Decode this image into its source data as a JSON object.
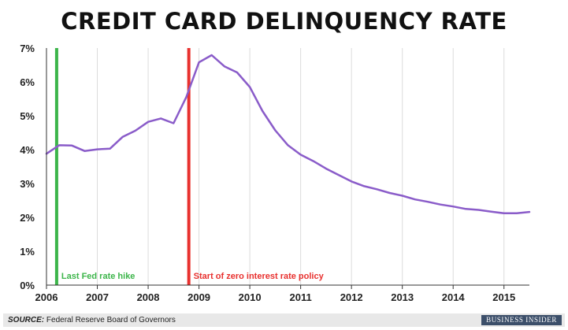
{
  "chart_data": {
    "type": "line",
    "title": "CREDIT CARD DELINQUENCY RATE",
    "xlabel": "",
    "ylabel": "",
    "x_ticks": [
      "2006",
      "2007",
      "2008",
      "2009",
      "2010",
      "2011",
      "2012",
      "2013",
      "2014",
      "2015"
    ],
    "y_ticks": [
      "0%",
      "1%",
      "2%",
      "3%",
      "4%",
      "5%",
      "6%",
      "7%"
    ],
    "xlim": [
      2006.0,
      2015.5
    ],
    "ylim": [
      0,
      7
    ],
    "grid": "vertical",
    "series": [
      {
        "color": "#8a5cc9",
        "points": [
          [
            2006.0,
            3.88
          ],
          [
            2006.25,
            4.13
          ],
          [
            2006.5,
            4.12
          ],
          [
            2006.75,
            3.96
          ],
          [
            2007.0,
            4.01
          ],
          [
            2007.25,
            4.03
          ],
          [
            2007.5,
            4.38
          ],
          [
            2007.75,
            4.56
          ],
          [
            2008.0,
            4.82
          ],
          [
            2008.25,
            4.92
          ],
          [
            2008.5,
            4.78
          ],
          [
            2008.75,
            5.55
          ],
          [
            2009.0,
            6.58
          ],
          [
            2009.25,
            6.79
          ],
          [
            2009.5,
            6.46
          ],
          [
            2009.75,
            6.28
          ],
          [
            2010.0,
            5.85
          ],
          [
            2010.25,
            5.14
          ],
          [
            2010.5,
            4.57
          ],
          [
            2010.75,
            4.13
          ],
          [
            2011.0,
            3.85
          ],
          [
            2011.25,
            3.66
          ],
          [
            2011.5,
            3.44
          ],
          [
            2011.75,
            3.25
          ],
          [
            2012.0,
            3.06
          ],
          [
            2012.25,
            2.92
          ],
          [
            2012.5,
            2.83
          ],
          [
            2012.75,
            2.72
          ],
          [
            2013.0,
            2.64
          ],
          [
            2013.25,
            2.53
          ],
          [
            2013.5,
            2.46
          ],
          [
            2013.75,
            2.38
          ],
          [
            2014.0,
            2.32
          ],
          [
            2014.25,
            2.25
          ],
          [
            2014.5,
            2.22
          ],
          [
            2014.75,
            2.17
          ],
          [
            2015.0,
            2.12
          ],
          [
            2015.25,
            2.12
          ],
          [
            2015.5,
            2.16
          ]
        ]
      }
    ],
    "annotations": [
      {
        "x": 2006.2,
        "label": "Last Fed rate hike",
        "color": "#3cb54a"
      },
      {
        "x": 2008.8,
        "label": "Start of zero interest rate policy",
        "color": "#e8302e"
      }
    ]
  },
  "footer": {
    "source_label": "SOURCE:",
    "source_text": " Federal Reserve Board of Governors",
    "brand": "BUSINESS INSIDER"
  }
}
